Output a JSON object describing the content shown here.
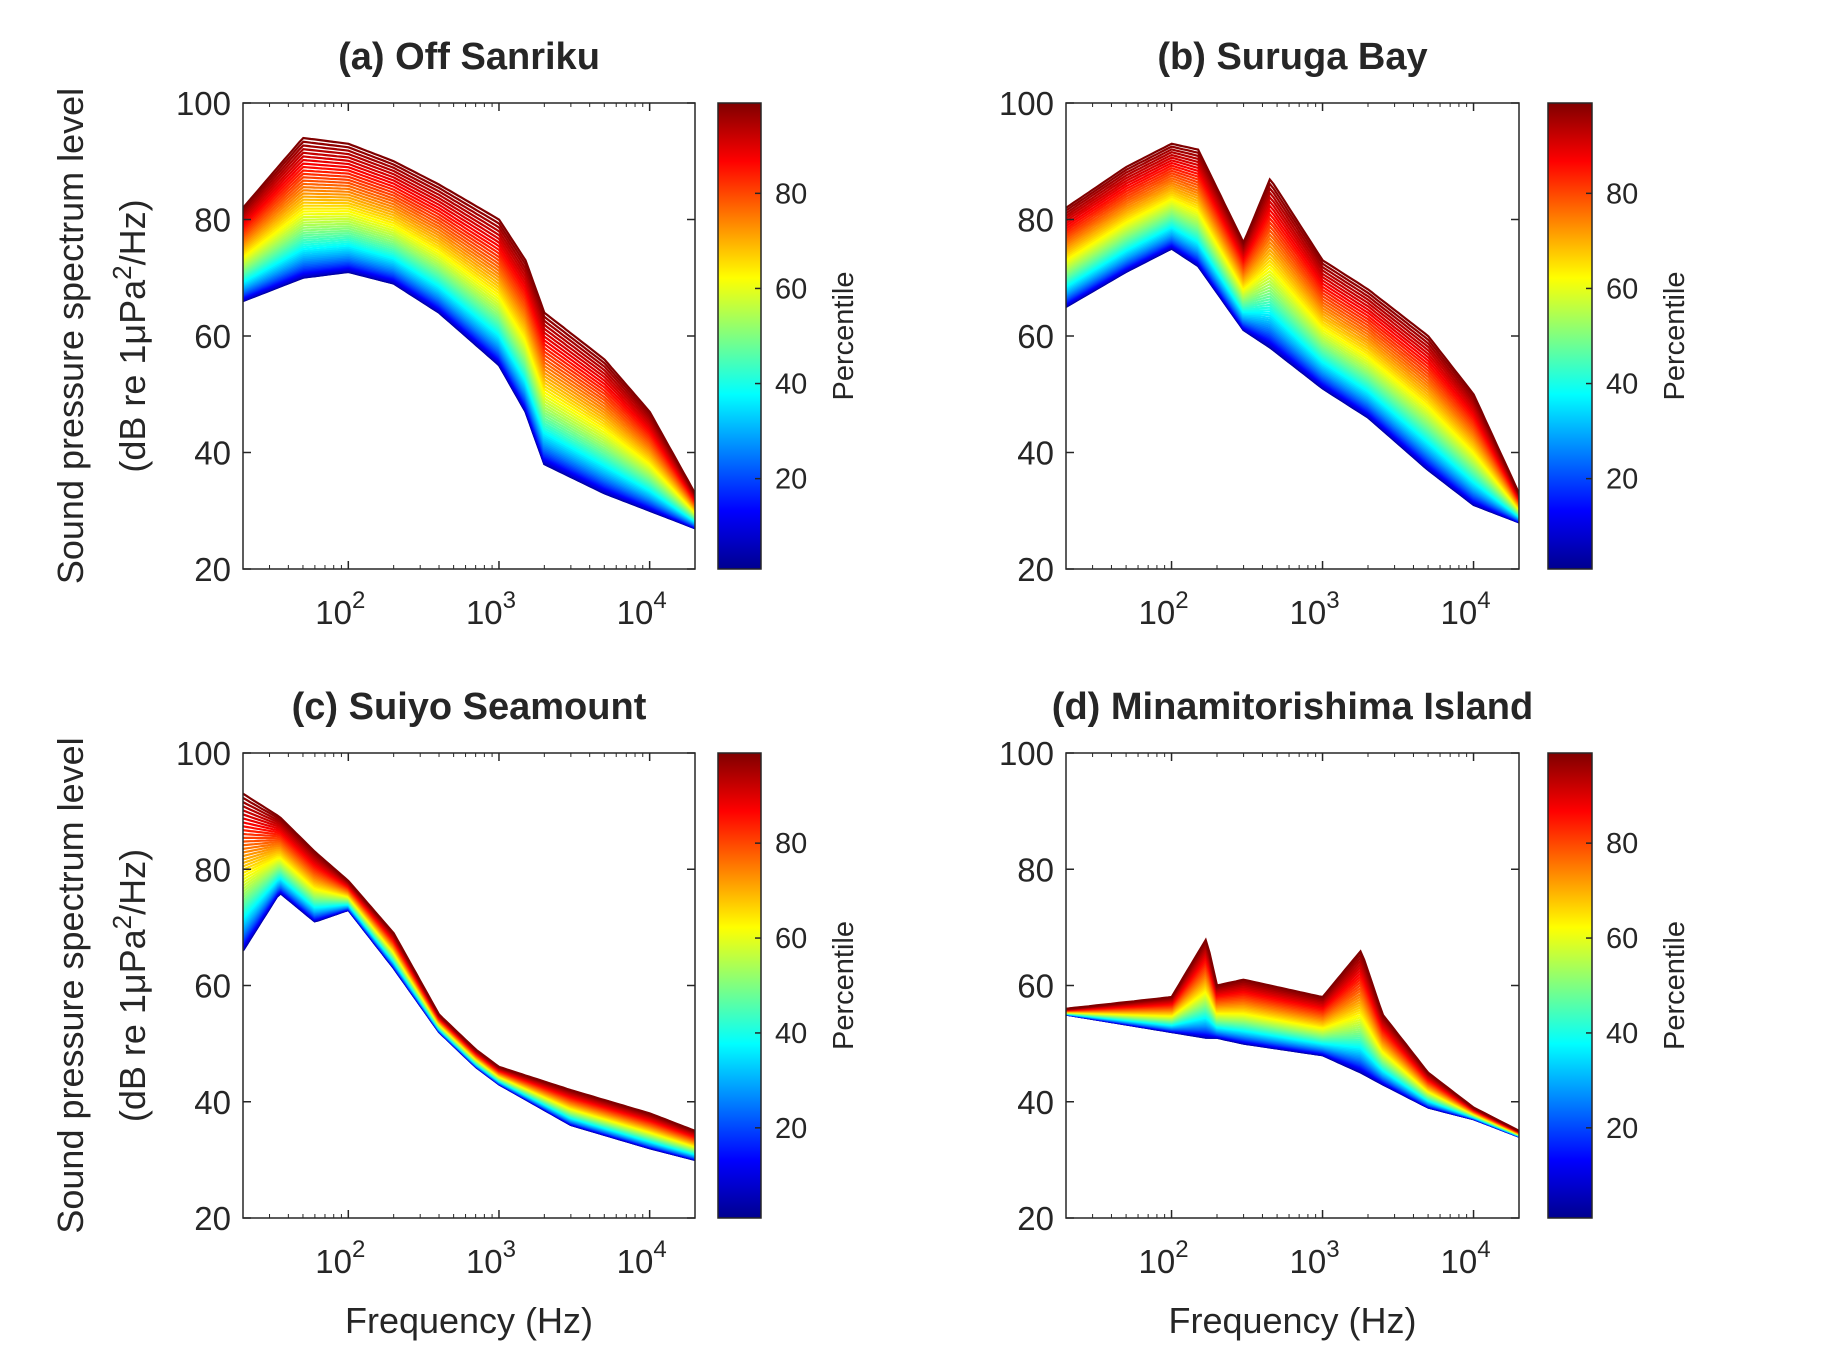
{
  "figure": {
    "ylabel_line1": "Sound pressure spectrum level",
    "ylabel_line2_pre": "(dB re 1μPa",
    "ylabel_line2_sup": "2",
    "ylabel_line2_post": "/Hz)",
    "xlabel": "Frequency (Hz)",
    "colorbar_label": "Percentile",
    "colorbar_ticks": [
      "20",
      "40",
      "60",
      "80"
    ],
    "colormap": [
      "#00008f",
      "#0000ff",
      "#0080ff",
      "#00ffff",
      "#80ff80",
      "#ffff00",
      "#ff8000",
      "#ff0000",
      "#800000"
    ]
  },
  "chart_data": [
    {
      "type": "line",
      "title": "(a) Off Sanriku",
      "xscale": "log",
      "xlim": [
        20,
        20000
      ],
      "ylim": [
        20,
        100
      ],
      "yticks": [
        "20",
        "40",
        "60",
        "80",
        "100"
      ],
      "xticks": [
        {
          "base": "10",
          "exp": "2"
        },
        {
          "base": "10",
          "exp": "3"
        },
        {
          "base": "10",
          "exp": "4"
        }
      ],
      "colorbar": {
        "label": "Percentile",
        "range": [
          1,
          99
        ]
      },
      "percentile_envelope": {
        "frequency_hz": [
          20,
          50,
          100,
          200,
          400,
          1000,
          1500,
          2000,
          5000,
          10000,
          20000
        ],
        "p1_db": [
          66,
          70,
          71,
          69,
          64,
          55,
          47,
          38,
          33,
          30,
          27
        ],
        "p99_db": [
          82,
          94,
          93,
          90,
          86,
          80,
          73,
          64,
          56,
          47,
          33
        ]
      }
    },
    {
      "type": "line",
      "title": "(b) Suruga Bay",
      "xscale": "log",
      "xlim": [
        20,
        20000
      ],
      "ylim": [
        20,
        100
      ],
      "yticks": [
        "20",
        "40",
        "60",
        "80",
        "100"
      ],
      "xticks": [
        {
          "base": "10",
          "exp": "2"
        },
        {
          "base": "10",
          "exp": "3"
        },
        {
          "base": "10",
          "exp": "4"
        }
      ],
      "colorbar": {
        "label": "Percentile",
        "range": [
          1,
          99
        ]
      },
      "percentile_envelope": {
        "frequency_hz": [
          20,
          50,
          100,
          150,
          300,
          450,
          1000,
          2000,
          5000,
          10000,
          20000
        ],
        "p1_db": [
          65,
          71,
          75,
          72,
          61,
          58,
          51,
          46,
          37,
          31,
          28
        ],
        "p99_db": [
          82,
          89,
          93,
          92,
          76,
          87,
          73,
          68,
          60,
          50,
          33
        ]
      }
    },
    {
      "type": "line",
      "title": "(c) Suiyo Seamount",
      "xscale": "log",
      "xlim": [
        20,
        20000
      ],
      "ylim": [
        20,
        100
      ],
      "yticks": [
        "20",
        "40",
        "60",
        "80",
        "100"
      ],
      "xticks": [
        {
          "base": "10",
          "exp": "2"
        },
        {
          "base": "10",
          "exp": "3"
        },
        {
          "base": "10",
          "exp": "4"
        }
      ],
      "colorbar": {
        "label": "Percentile",
        "range": [
          1,
          99
        ]
      },
      "percentile_envelope": {
        "frequency_hz": [
          20,
          35,
          60,
          100,
          200,
          400,
          700,
          1000,
          3000,
          10000,
          20000
        ],
        "p1_db": [
          66,
          76,
          71,
          73,
          63,
          52,
          46,
          43,
          36,
          32,
          30
        ],
        "p99_db": [
          93,
          89,
          83,
          78,
          69,
          55,
          49,
          46,
          42,
          38,
          35
        ]
      }
    },
    {
      "type": "line",
      "title": "(d) Minamitorishima Island",
      "xscale": "log",
      "xlim": [
        20,
        20000
      ],
      "ylim": [
        20,
        100
      ],
      "yticks": [
        "20",
        "40",
        "60",
        "80",
        "100"
      ],
      "xticks": [
        {
          "base": "10",
          "exp": "2"
        },
        {
          "base": "10",
          "exp": "3"
        },
        {
          "base": "10",
          "exp": "4"
        }
      ],
      "colorbar": {
        "label": "Percentile",
        "range": [
          1,
          99
        ]
      },
      "percentile_envelope": {
        "frequency_hz": [
          20,
          100,
          170,
          200,
          300,
          1000,
          1800,
          2500,
          5000,
          10000,
          20000
        ],
        "p1_db": [
          55,
          52,
          51,
          51,
          50,
          48,
          45,
          43,
          39,
          37,
          34
        ],
        "p99_db": [
          56,
          58,
          68,
          60,
          61,
          58,
          66,
          55,
          45,
          39,
          35
        ]
      }
    }
  ]
}
